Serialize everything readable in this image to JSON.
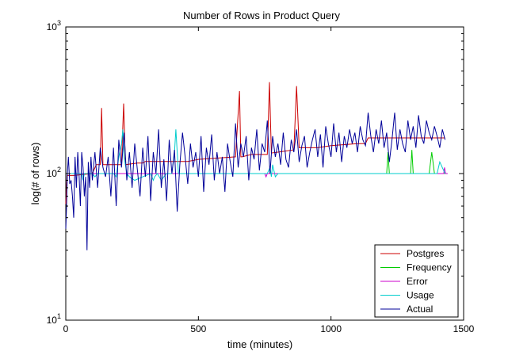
{
  "chart_data": {
    "type": "line",
    "title": "Number of Rows in Product Query",
    "xlabel": "time (minutes)",
    "ylabel": "log(# of rows)",
    "xlim": [
      0,
      1500
    ],
    "ylim": [
      10,
      1000
    ],
    "y_scale": "log",
    "grid": false,
    "legend_position": "bottom-right",
    "x_ticks": [
      {
        "value": 0,
        "label": "0"
      },
      {
        "value": 500,
        "label": "500"
      },
      {
        "value": 1000,
        "label": "1000"
      },
      {
        "value": 1500,
        "label": "1500"
      }
    ],
    "y_ticks": [
      {
        "value": 10,
        "base": "10",
        "exp": "1"
      },
      {
        "value": 100,
        "base": "10",
        "exp": "2"
      },
      {
        "value": 1000,
        "base": "10",
        "exp": "3"
      }
    ],
    "series": [
      {
        "name": "Postgres",
        "color": "#cc0000",
        "x": [
          0,
          5,
          30,
          100,
          115,
          130,
          135,
          140,
          210,
          218,
          225,
          270,
          290,
          300,
          380,
          400,
          460,
          500,
          640,
          655,
          660,
          665,
          700,
          760,
          768,
          775,
          800,
          860,
          870,
          880,
          950,
          1000,
          1100,
          1130,
          1140,
          1200,
          1300,
          1400,
          1430
        ],
        "y": [
          62,
          97,
          97,
          100,
          115,
          115,
          280,
          115,
          115,
          300,
          115,
          118,
          118,
          121,
          121,
          121,
          121,
          125,
          130,
          365,
          130,
          130,
          135,
          135,
          420,
          138,
          140,
          145,
          395,
          150,
          150,
          155,
          160,
          160,
          175,
          175,
          175,
          175,
          175
        ]
      },
      {
        "name": "Frequency",
        "color": "#00cc00",
        "x": [
          0,
          1200,
          1210,
          1215,
          1220,
          1225,
          1300,
          1305,
          1310,
          1315,
          1320,
          1370,
          1380,
          1390,
          1430
        ],
        "y": [
          100,
          100,
          100,
          140,
          100,
          100,
          100,
          145,
          100,
          100,
          100,
          100,
          140,
          100,
          100
        ]
      },
      {
        "name": "Error",
        "color": "#cc00cc",
        "x": [
          0,
          750,
          755,
          760,
          765,
          1425,
          1428,
          1432,
          1435,
          1440
        ],
        "y": [
          100,
          100,
          95,
          100,
          100,
          100,
          110,
          100,
          100,
          100
        ]
      },
      {
        "name": "Usage",
        "color": "#00cccc",
        "x": [
          0,
          60,
          65,
          70,
          100,
          110,
          120,
          125,
          180,
          190,
          200,
          210,
          215,
          220,
          230,
          240,
          260,
          290,
          320,
          330,
          335,
          345,
          360,
          370,
          380,
          400,
          410,
          415,
          425,
          440,
          700,
          760,
          770,
          775,
          780,
          790,
          800,
          900,
          1000,
          1100,
          1300,
          1400,
          1410,
          1430
        ],
        "y": [
          100,
          100,
          90,
          100,
          100,
          95,
          100,
          100,
          100,
          95,
          130,
          160,
          200,
          130,
          100,
          95,
          90,
          95,
          100,
          90,
          95,
          100,
          90,
          95,
          100,
          100,
          140,
          200,
          100,
          100,
          100,
          100,
          110,
          95,
          115,
          95,
          100,
          100,
          100,
          100,
          100,
          100,
          120,
          100
        ]
      },
      {
        "name": "Actual",
        "color": "#000099",
        "x": [
          0,
          3,
          6,
          10,
          15,
          20,
          25,
          30,
          35,
          40,
          45,
          50,
          55,
          60,
          65,
          70,
          75,
          80,
          85,
          90,
          95,
          100,
          110,
          120,
          130,
          140,
          150,
          160,
          170,
          180,
          190,
          200,
          210,
          220,
          230,
          240,
          250,
          260,
          270,
          280,
          290,
          300,
          310,
          320,
          330,
          340,
          350,
          360,
          370,
          380,
          390,
          400,
          410,
          420,
          430,
          440,
          450,
          460,
          470,
          480,
          490,
          500,
          510,
          520,
          530,
          540,
          550,
          560,
          570,
          580,
          590,
          600,
          610,
          620,
          630,
          640,
          650,
          660,
          670,
          680,
          690,
          700,
          710,
          720,
          730,
          740,
          750,
          760,
          770,
          780,
          790,
          800,
          810,
          820,
          830,
          840,
          850,
          860,
          870,
          880,
          890,
          900,
          910,
          920,
          930,
          940,
          950,
          960,
          970,
          980,
          990,
          1000,
          1010,
          1020,
          1030,
          1040,
          1050,
          1060,
          1070,
          1080,
          1090,
          1100,
          1110,
          1120,
          1130,
          1140,
          1150,
          1160,
          1170,
          1180,
          1190,
          1200,
          1210,
          1220,
          1230,
          1240,
          1250,
          1260,
          1270,
          1280,
          1290,
          1300,
          1310,
          1320,
          1330,
          1340,
          1350,
          1360,
          1370,
          1380,
          1390,
          1400,
          1410,
          1420,
          1430
        ],
        "y": [
          42,
          60,
          100,
          130,
          85,
          90,
          70,
          50,
          130,
          80,
          140,
          100,
          60,
          140,
          110,
          70,
          95,
          30,
          120,
          80,
          130,
          90,
          140,
          80,
          150,
          110,
          95,
          130,
          70,
          150,
          60,
          170,
          110,
          190,
          90,
          140,
          80,
          160,
          105,
          70,
          150,
          95,
          180,
          65,
          140,
          100,
          200,
          80,
          125,
          65,
          170,
          100,
          145,
          55,
          115,
          190,
          130,
          85,
          160,
          110,
          140,
          95,
          180,
          75,
          150,
          115,
          185,
          90,
          140,
          100,
          130,
          75,
          160,
          120,
          95,
          220,
          110,
          160,
          130,
          180,
          90,
          150,
          125,
          200,
          105,
          160,
          140,
          230,
          100,
          180,
          130,
          160,
          115,
          190,
          125,
          110,
          170,
          140,
          200,
          120,
          155,
          180,
          110,
          140,
          170,
          200,
          130,
          185,
          110,
          210,
          160,
          130,
          220,
          140,
          190,
          120,
          180,
          150,
          200,
          160,
          190,
          140,
          210,
          170,
          155,
          260,
          180,
          140,
          200,
          160,
          230,
          150,
          190,
          120,
          170,
          260,
          145,
          200,
          160,
          140,
          230,
          170,
          210,
          150,
          250,
          180,
          160,
          230,
          190,
          170,
          210,
          180,
          150,
          200,
          170
        ]
      }
    ]
  }
}
